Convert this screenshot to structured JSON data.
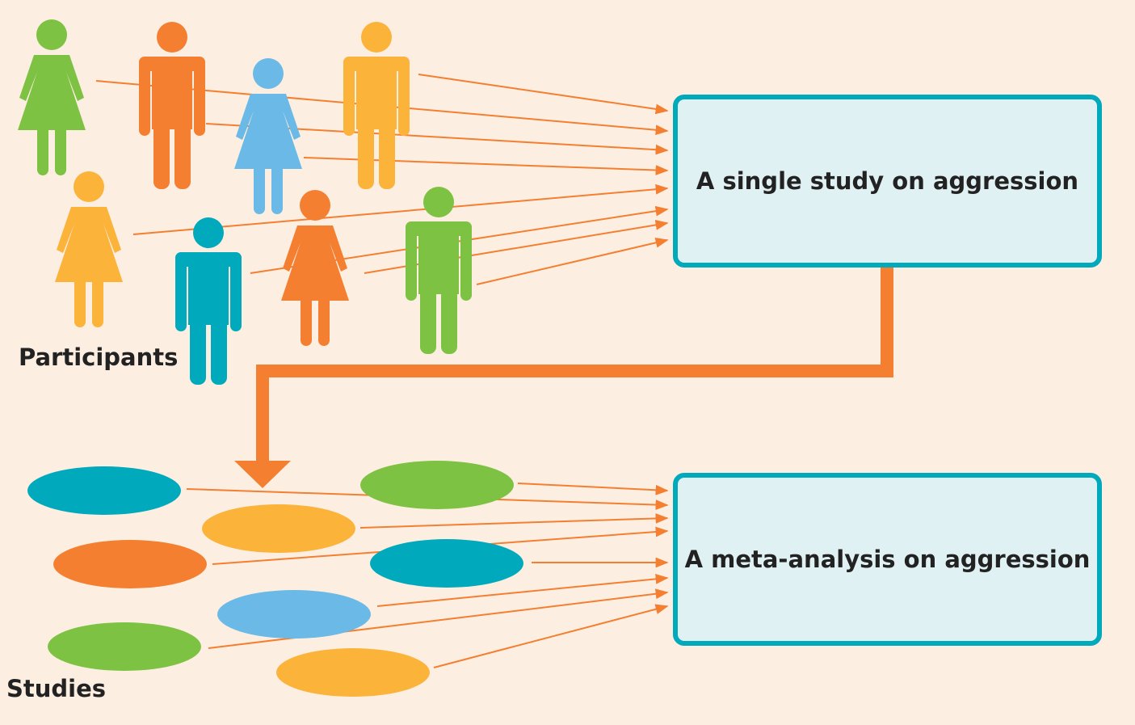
{
  "labels": {
    "participants": "Participants",
    "studies": "Studies",
    "single_study": "A single study on aggression",
    "meta_analysis": "A meta-analysis on aggression"
  },
  "colors": {
    "background": "#fdeee2",
    "green": "#7dc242",
    "orange": "#f47f30",
    "yellow": "#fbb33a",
    "light_blue": "#6bb9e6",
    "teal": "#00a9bb",
    "box_fill": "#e0f1f4",
    "box_border": "#00a9bb",
    "arrow": "#f47f30"
  },
  "participants": [
    {
      "gender": "female",
      "color": "green"
    },
    {
      "gender": "male",
      "color": "orange"
    },
    {
      "gender": "female",
      "color": "light_blue"
    },
    {
      "gender": "male",
      "color": "yellow"
    },
    {
      "gender": "female",
      "color": "yellow"
    },
    {
      "gender": "male",
      "color": "teal"
    },
    {
      "gender": "female",
      "color": "orange"
    },
    {
      "gender": "male",
      "color": "green"
    }
  ],
  "studies": [
    {
      "color": "teal"
    },
    {
      "color": "green"
    },
    {
      "color": "yellow"
    },
    {
      "color": "orange"
    },
    {
      "color": "teal"
    },
    {
      "color": "light_blue"
    },
    {
      "color": "green"
    },
    {
      "color": "yellow"
    }
  ]
}
